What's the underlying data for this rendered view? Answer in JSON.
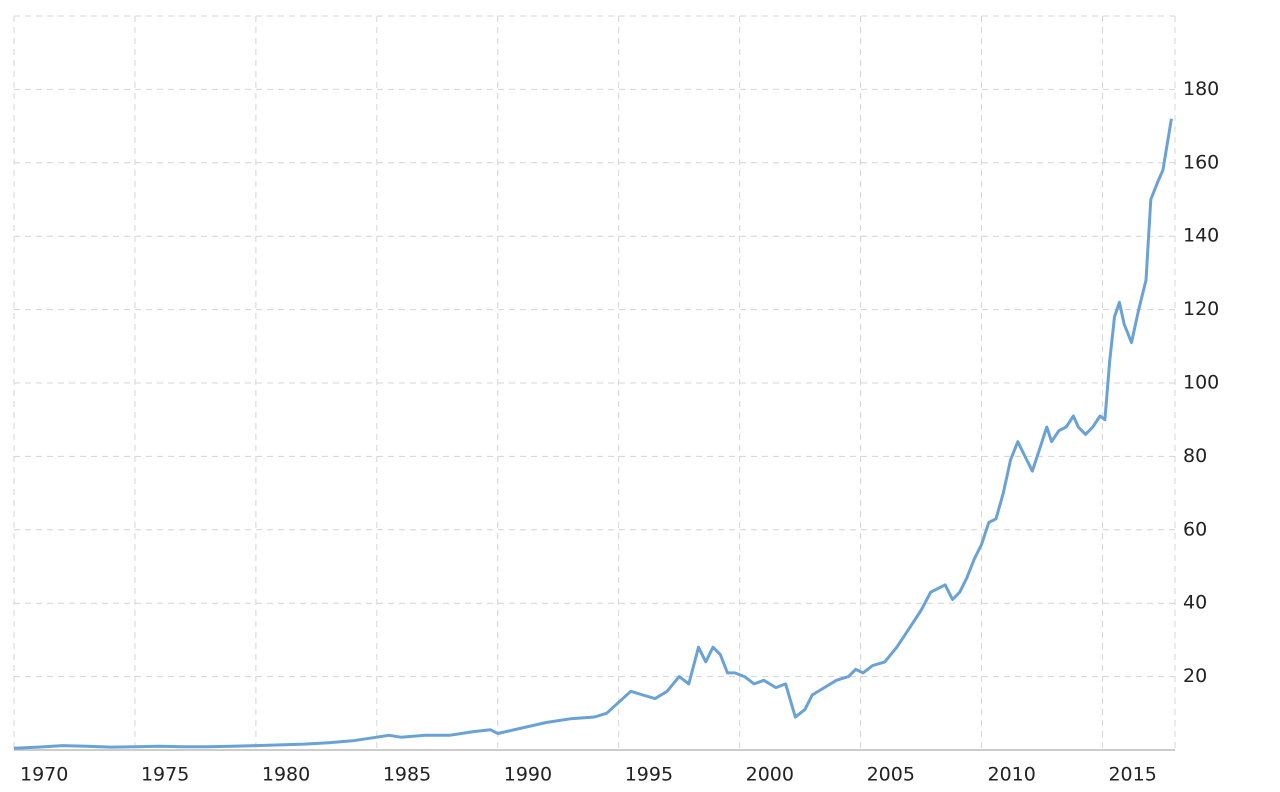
{
  "chart_data": {
    "type": "line",
    "x": [
      1970,
      1971,
      1972,
      1973,
      1974,
      1975,
      1976,
      1977,
      1978,
      1979,
      1980,
      1981,
      1982,
      1983,
      1984,
      1985,
      1985.5,
      1986,
      1987,
      1988,
      1989,
      1989.7,
      1990,
      1991,
      1992,
      1993,
      1994,
      1994.5,
      1995,
      1995.5,
      1996,
      1996.5,
      1997,
      1997.5,
      1997.9,
      1998.3,
      1998.6,
      1998.9,
      1999.2,
      1999.5,
      1999.8,
      2000.2,
      2000.6,
      2001,
      2001.5,
      2001.9,
      2002.3,
      2002.7,
      2003,
      2003.5,
      2004,
      2004.5,
      2004.8,
      2005.1,
      2005.5,
      2006,
      2006.5,
      2007,
      2007.5,
      2007.9,
      2008.2,
      2008.5,
      2008.8,
      2009.1,
      2009.4,
      2009.7,
      2010,
      2010.3,
      2010.6,
      2010.9,
      2011.2,
      2011.5,
      2011.8,
      2012.1,
      2012.4,
      2012.7,
      2012.9,
      2013.2,
      2013.5,
      2013.8,
      2014,
      2014.3,
      2014.6,
      2014.9,
      2015.1,
      2015.3,
      2015.5,
      2015.7,
      2015.9,
      2016.2,
      2016.5,
      2016.8,
      2017,
      2017.3,
      2017.5,
      2017.85
    ],
    "series": [
      {
        "color": "#6aa2d5",
        "values": [
          0.5,
          0.8,
          1.2,
          1,
          0.8,
          0.9,
          1,
          0.9,
          0.9,
          1,
          1.2,
          1.4,
          1.6,
          2,
          2.5,
          3.5,
          4,
          3.5,
          4,
          4,
          5,
          5.5,
          4.5,
          6,
          7.5,
          8.5,
          9,
          10,
          13,
          16,
          15,
          14,
          16,
          20,
          18,
          28,
          24,
          28,
          26,
          21,
          21,
          20,
          18,
          19,
          17,
          18,
          9,
          11,
          15,
          17,
          19,
          20,
          22,
          21,
          23,
          24,
          28,
          33,
          38,
          43,
          44,
          45,
          41,
          43,
          47,
          52,
          56,
          62,
          63,
          70,
          79,
          84,
          80,
          76,
          82,
          88,
          84,
          87,
          88,
          91,
          88,
          86,
          88,
          91,
          90,
          106,
          118,
          122,
          116,
          111,
          120,
          128,
          150,
          155,
          158,
          172
        ]
      }
    ],
    "xlim": [
      1970,
      2018
    ],
    "xticks": [
      1970,
      1975,
      1980,
      1985,
      1990,
      1995,
      2000,
      2005,
      2010,
      2015
    ],
    "ylim": [
      0,
      200
    ],
    "yticks": [
      20,
      40,
      60,
      80,
      100,
      120,
      140,
      160,
      180
    ],
    "grid": true
  }
}
